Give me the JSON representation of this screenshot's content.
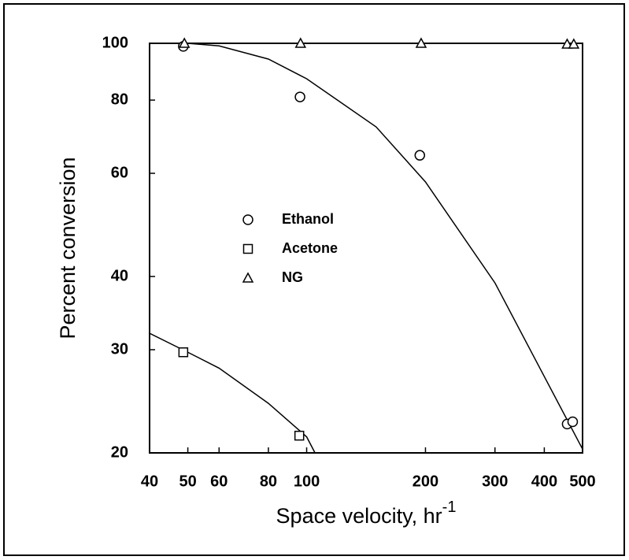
{
  "chart_data": {
    "type": "scatter",
    "xlabel": "Space velocity, hr",
    "xlabel_superscript": "-1",
    "ylabel": "Percent conversion",
    "xscale": "log",
    "yscale": "log",
    "xlim": [
      40,
      500
    ],
    "ylim": [
      20,
      100
    ],
    "xticks": [
      40,
      50,
      60,
      80,
      100,
      200,
      300,
      400,
      500
    ],
    "yticks": [
      20,
      30,
      40,
      60,
      80,
      100
    ],
    "series": [
      {
        "name": "Ethanol",
        "marker": "circle",
        "x": [
          48.7,
          96.2,
          193.5,
          457,
          472
        ],
        "values": [
          98.8,
          81,
          64.4,
          22.4,
          22.6
        ]
      },
      {
        "name": "Acetone",
        "marker": "square",
        "x": [
          48.7,
          95.8
        ],
        "values": [
          29.7,
          21.4
        ]
      },
      {
        "name": "NG",
        "marker": "triangle",
        "x": [
          49,
          96.5,
          195,
          457,
          475
        ],
        "values": [
          100,
          100,
          100,
          99.7,
          99.7
        ]
      }
    ],
    "fits": [
      {
        "x": [
          50,
          60,
          80,
          100,
          150,
          200,
          300,
          400,
          500
        ],
        "values": [
          100,
          99,
          94,
          87,
          72,
          58,
          39,
          27,
          20.3
        ]
      },
      {
        "x": [
          40,
          50,
          60,
          80,
          100,
          105
        ],
        "values": [
          32,
          29.7,
          27.9,
          24.3,
          21.3,
          20
        ]
      },
      {
        "x": [
          40,
          500
        ],
        "values": [
          100,
          100
        ]
      }
    ],
    "legend_position": "center-left"
  }
}
